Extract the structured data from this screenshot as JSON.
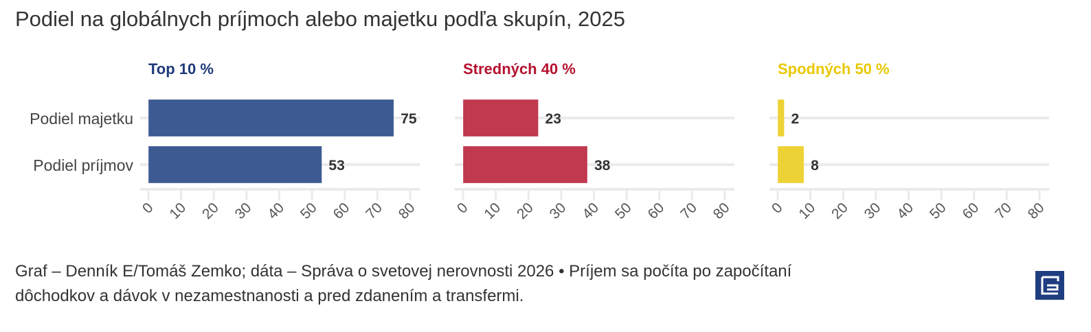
{
  "title": "Podiel na globálnych príjmoch alebo majetku podľa skupín, 2025",
  "caption_line1": "Graf – Denník E/Tomáš Zemko; dáta – Správa o svetovej nerovnosti 2026 • Príjem sa počíta po započítaní",
  "caption_line2": "dôchodkov a dávok v nezamestnanosti a pred zdanením a transfermi.",
  "logo": "E",
  "chart_data": {
    "type": "bar",
    "orientation": "horizontal",
    "title": "Podiel na globálnych príjmoch alebo majetku podľa skupín, 2025",
    "categories": [
      "Podiel majetku",
      "Podiel príjmov"
    ],
    "xlim": [
      0,
      80
    ],
    "ticks": [
      0,
      10,
      20,
      30,
      40,
      50,
      60,
      70,
      80
    ],
    "grid": true,
    "series": [
      {
        "name": "Top 10 %",
        "color": "#3d5a92",
        "title_color": "#1f3a7a",
        "values": [
          75,
          53
        ]
      },
      {
        "name": "Stredných 40 %",
        "color": "#c0394f",
        "title_color": "#b5122e",
        "values": [
          23,
          38
        ]
      },
      {
        "name": "Spodných 50 %",
        "color": "#edd235",
        "title_color": "#e8c800",
        "values": [
          2,
          8
        ]
      }
    ]
  }
}
